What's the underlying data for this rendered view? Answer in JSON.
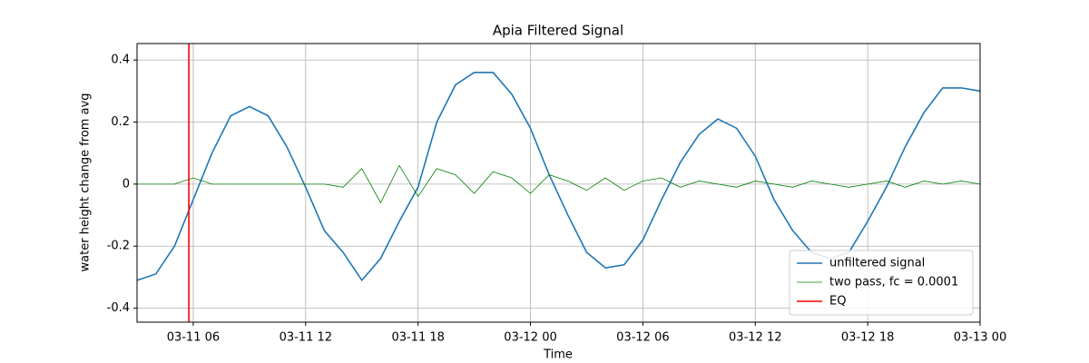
{
  "chart_data": {
    "type": "line",
    "title": "Apia Filtered Signal",
    "x_label": "Time",
    "y_label": "water height change from avg",
    "x": [
      "03-11 03",
      "03-11 04",
      "03-11 05",
      "03-11 06",
      "03-11 07",
      "03-11 08",
      "03-11 09",
      "03-11 10",
      "03-11 11",
      "03-11 12",
      "03-11 13",
      "03-11 14",
      "03-11 15",
      "03-11 16",
      "03-11 17",
      "03-11 18",
      "03-11 19",
      "03-11 20",
      "03-11 21",
      "03-11 22",
      "03-11 23",
      "03-12 00",
      "03-12 01",
      "03-12 02",
      "03-12 03",
      "03-12 04",
      "03-12 05",
      "03-12 06",
      "03-12 07",
      "03-12 08",
      "03-12 09",
      "03-12 10",
      "03-12 11",
      "03-12 12",
      "03-12 13",
      "03-12 14",
      "03-12 15",
      "03-12 16",
      "03-12 17",
      "03-12 18",
      "03-12 19",
      "03-12 20",
      "03-12 21",
      "03-12 22",
      "03-12 23",
      "03-13 00"
    ],
    "series": [
      {
        "name": "unfiltered signal",
        "color": "#1f77b4",
        "values": [
          -0.31,
          -0.29,
          -0.2,
          -0.05,
          0.1,
          0.22,
          0.25,
          0.22,
          0.12,
          -0.01,
          -0.15,
          -0.22,
          -0.31,
          -0.24,
          -0.12,
          -0.01,
          0.2,
          0.32,
          0.36,
          0.36,
          0.29,
          0.18,
          0.03,
          -0.1,
          -0.22,
          -0.27,
          -0.26,
          -0.18,
          -0.05,
          0.07,
          0.16,
          0.21,
          0.18,
          0.09,
          -0.05,
          -0.15,
          -0.22,
          -0.24,
          -0.22,
          -0.12,
          -0.01,
          0.12,
          0.23,
          0.31,
          0.31,
          0.3
        ]
      },
      {
        "name": "two pass, fc = 0.0001",
        "color": "#008000",
        "values": [
          0,
          0,
          0,
          0.02,
          0,
          0,
          0,
          0,
          0,
          0,
          0,
          -0.01,
          0.05,
          -0.06,
          0.06,
          -0.04,
          0.05,
          0.03,
          -0.03,
          0.04,
          0.02,
          -0.03,
          0.03,
          0.01,
          -0.02,
          0.02,
          -0.02,
          0.01,
          0.02,
          -0.01,
          0.01,
          0,
          -0.01,
          0.01,
          0,
          -0.01,
          0.01,
          0,
          -0.01,
          0,
          0.01,
          -0.01,
          0.01,
          0,
          0.01,
          0
        ]
      }
    ],
    "vlines": [
      {
        "name": "EQ",
        "color": "#ff0000",
        "x": "03-11 05:46"
      }
    ],
    "xlim": [
      "03-11 03",
      "03-13 00"
    ],
    "xticks": [
      "03-11 06",
      "03-11 12",
      "03-11 18",
      "03-12 00",
      "03-12 06",
      "03-12 12",
      "03-12 18",
      "03-13 00"
    ],
    "ylim": [
      -0.445,
      0.453
    ],
    "yticks": [
      -0.4,
      -0.2,
      0.0,
      0.2,
      0.4
    ],
    "grid": true,
    "legend": "lower right"
  }
}
